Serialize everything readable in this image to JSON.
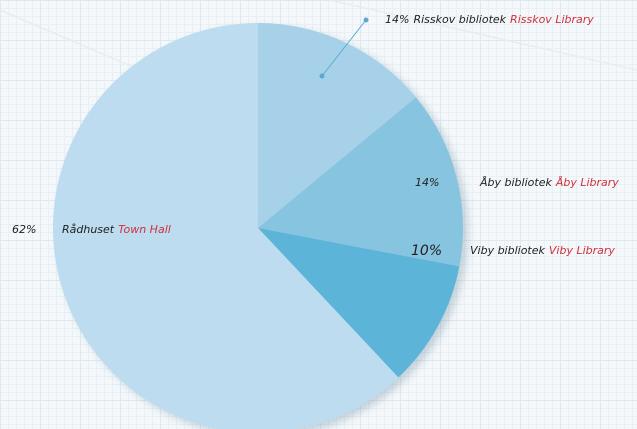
{
  "chart_data": {
    "type": "pie",
    "categories": [
      "Risskov bibliotek",
      "Åby bibliotek",
      "Viby bibliotek",
      "Rådhuset"
    ],
    "english_labels": [
      "Risskov Library",
      "Åby Library",
      "Viby Library",
      "Town Hall"
    ],
    "values": [
      14,
      14,
      10,
      62
    ],
    "value_labels": [
      "14%",
      "14%",
      "10%",
      "62%"
    ],
    "colors": [
      "#a6d1e9",
      "#87c4e0",
      "#5db4d9",
      "#bddcef"
    ]
  }
}
